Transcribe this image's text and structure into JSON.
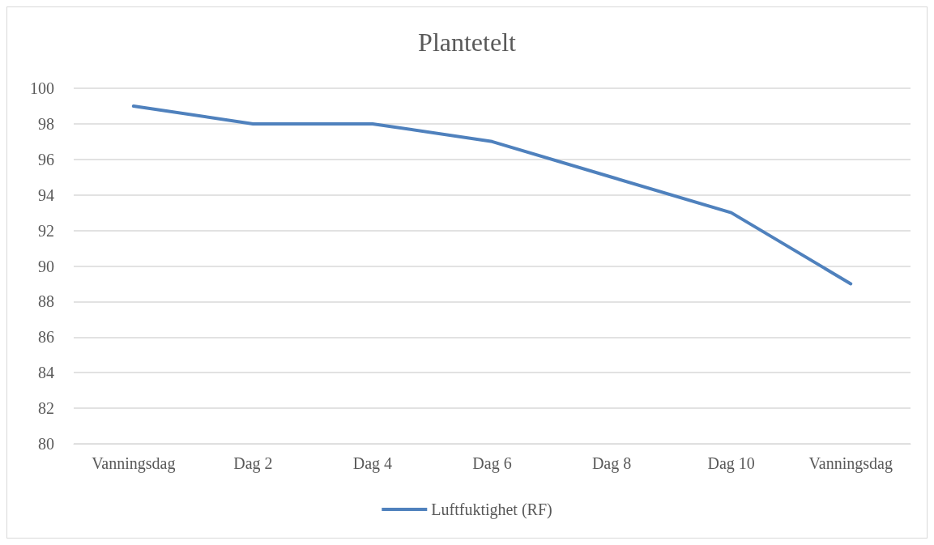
{
  "chart_data": {
    "type": "line",
    "title": "Plantetelt",
    "categories": [
      "Vanningsdag",
      "Dag 2",
      "Dag 4",
      "Dag 6",
      "Dag 8",
      "Dag 10",
      "Vanningsdag"
    ],
    "series": [
      {
        "name": "Luftfuktighet (RF)",
        "color": "#4f81bd",
        "values": [
          99,
          98,
          98,
          97,
          95,
          93,
          89
        ]
      }
    ],
    "ylim": [
      80,
      100
    ],
    "yticks": [
      80,
      82,
      84,
      86,
      88,
      90,
      92,
      94,
      96,
      98,
      100
    ],
    "grid": "y",
    "legend": "bottom",
    "marker": "none",
    "line_style": "solid"
  }
}
